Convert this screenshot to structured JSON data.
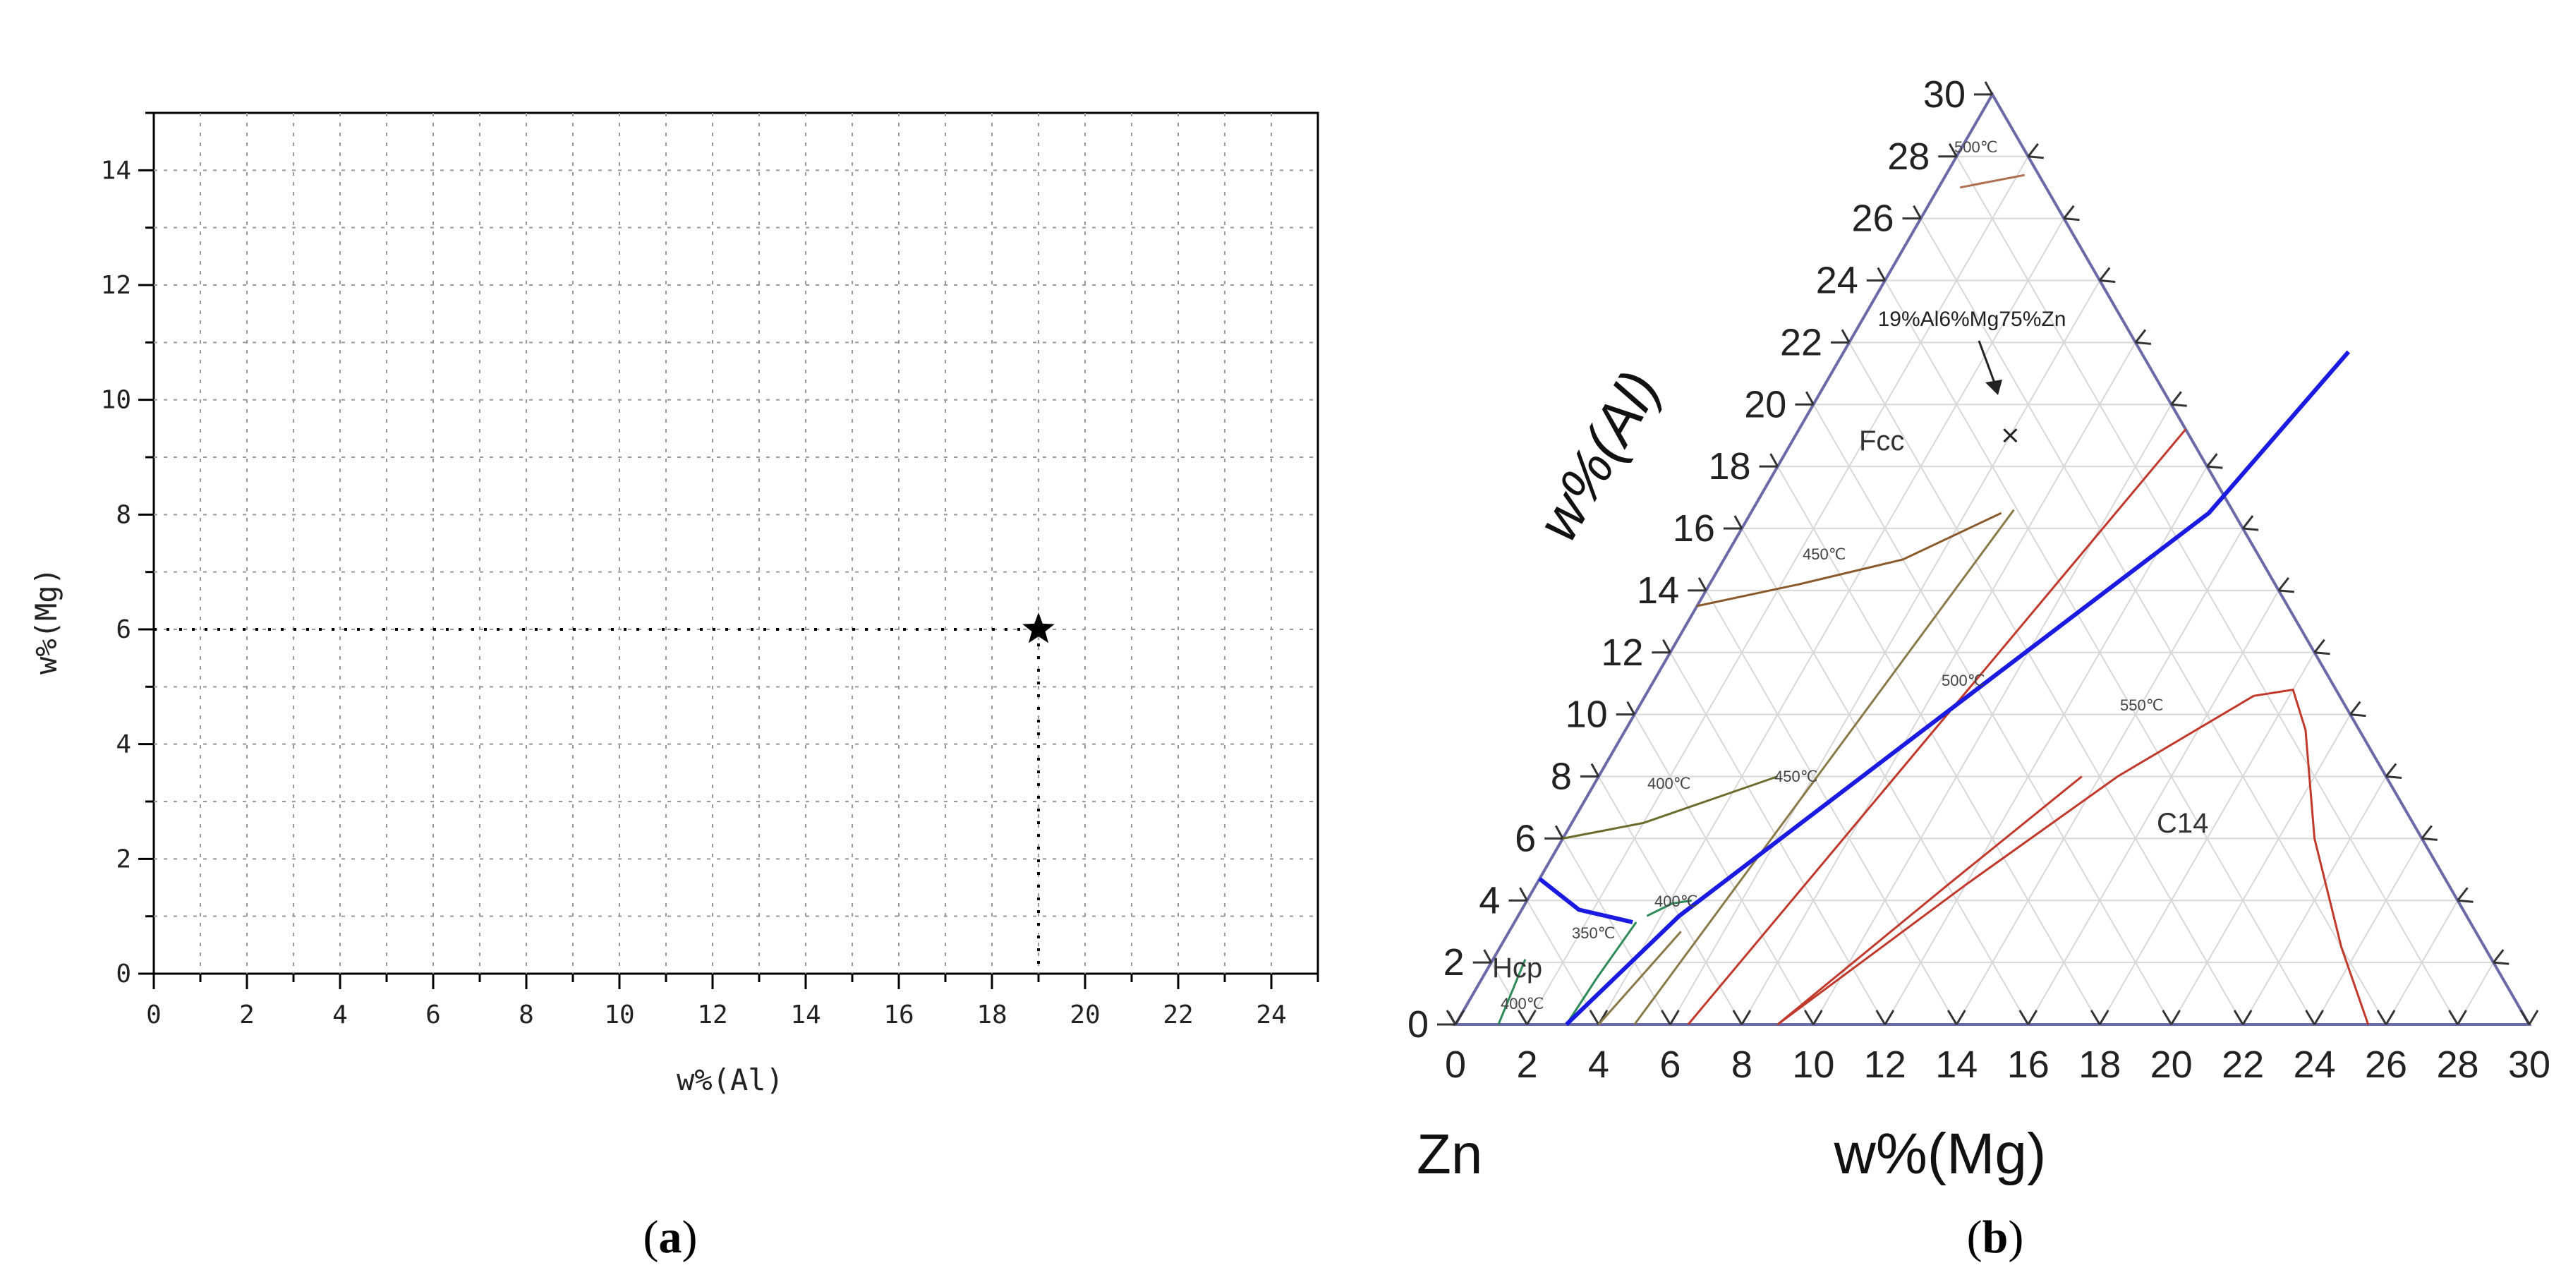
{
  "chart_data": [
    {
      "type": "scatter",
      "panel_label": "a",
      "title": "",
      "xlabel": "w%(Al)",
      "ylabel": "w%(Mg)",
      "xlim": [
        0,
        25
      ],
      "ylim": [
        0,
        15
      ],
      "xticks": [
        0,
        2,
        4,
        6,
        8,
        10,
        12,
        14,
        16,
        18,
        20,
        22,
        24
      ],
      "xtick_labels": [
        "0",
        "2",
        "4",
        "6",
        "8",
        "10",
        "12",
        "14",
        "16",
        "18",
        "20",
        "22",
        "24"
      ],
      "yticks": [
        0,
        2,
        4,
        6,
        8,
        10,
        12,
        14
      ],
      "ytick_labels": [
        "0",
        "2",
        "4",
        "6",
        "8",
        "10",
        "12",
        "14"
      ],
      "grid": true,
      "marker": "star",
      "points": [
        {
          "x": 19,
          "y": 6
        }
      ],
      "guide_lines": "dotted"
    },
    {
      "type": "ternary",
      "panel_label": "b",
      "title": "",
      "corner_label": "Zn",
      "xlabel": "w%(Mg)",
      "ylabel": "w%(Al)",
      "mg_ticks": [
        0,
        2,
        4,
        6,
        8,
        10,
        12,
        14,
        16,
        18,
        20,
        22,
        24,
        26,
        28,
        30
      ],
      "mg_tick_labels": [
        "0",
        "2",
        "4",
        "6",
        "8",
        "10",
        "12",
        "14",
        "16",
        "18",
        "20",
        "22",
        "24",
        "26",
        "28",
        "30"
      ],
      "al_ticks": [
        0,
        2,
        4,
        6,
        8,
        10,
        12,
        14,
        16,
        18,
        20,
        22,
        24,
        26,
        28,
        30
      ],
      "al_tick_labels": [
        "0",
        "2",
        "4",
        "6",
        "8",
        "10",
        "12",
        "14",
        "16",
        "18",
        "20",
        "22",
        "24",
        "26",
        "28",
        "30"
      ],
      "range": [
        0,
        30
      ],
      "point": {
        "mg": 6,
        "al": 19,
        "marker": "x"
      },
      "point_annotation": "19%Al6%Mg75%Zn",
      "regions": [
        "Fcc",
        "Hcp",
        "C14"
      ],
      "isotherm_labels": [
        "500℃",
        "450℃",
        "500℃",
        "450℃",
        "400℃",
        "550℃",
        "400℃",
        "350℃",
        "400℃"
      ],
      "phase_boundary_color": "#1a1ae0",
      "isotherm_colors": {
        "brown": "#8b5a2b",
        "olive": "#8a8a3a",
        "red": "#c0392b"
      }
    }
  ]
}
